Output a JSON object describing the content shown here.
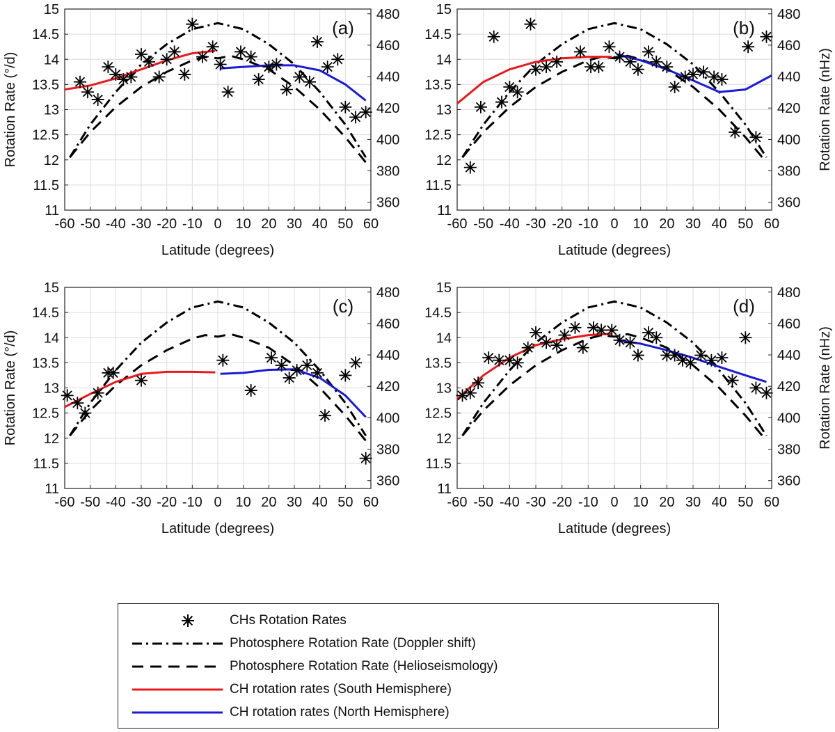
{
  "chart_data": {
    "type": "scatter",
    "figure_layout": "2x2",
    "shared": {
      "xlabel": "Latitude (degrees)",
      "ylabel_left": "Rotation Rate (°/d)",
      "ylabel_right": "Rotation Rate (nHz)",
      "xlim": [
        -60,
        60
      ],
      "ylim": [
        11,
        15
      ],
      "ylim_right": [
        355,
        483
      ],
      "xticks": [
        -60,
        -50,
        -40,
        -30,
        -20,
        -10,
        0,
        10,
        20,
        30,
        40,
        50,
        60
      ],
      "yticks": [
        11,
        11.5,
        12,
        12.5,
        13,
        13.5,
        14,
        14.5,
        15
      ],
      "yticks_right": [
        360,
        380,
        400,
        420,
        440,
        460,
        480
      ],
      "grid": true
    },
    "reference_series": {
      "doppler": {
        "name": "Photosphere Rotation Rate (Doppler shift)",
        "style": "dash-dot",
        "color": "#000000",
        "x": [
          -58,
          -50,
          -40,
          -30,
          -20,
          -10,
          0,
          10,
          20,
          30,
          40,
          50,
          58
        ],
        "y": [
          12.05,
          12.7,
          13.35,
          13.9,
          14.3,
          14.6,
          14.72,
          14.6,
          14.3,
          13.9,
          13.35,
          12.7,
          12.05
        ]
      },
      "helioseismology": {
        "name": "Photosphere Rotation Rate (Helioseismology)",
        "style": "dashed",
        "color": "#000000",
        "x": [
          -58,
          -50,
          -40,
          -30,
          -20,
          -10,
          -5,
          0,
          5,
          10,
          20,
          30,
          40,
          50,
          58
        ],
        "y": [
          12.05,
          12.55,
          13.05,
          13.45,
          13.75,
          13.98,
          14.05,
          14.02,
          14.07,
          14.0,
          13.8,
          13.45,
          13.0,
          12.45,
          11.95
        ]
      }
    },
    "panels": [
      {
        "label": "(a)",
        "scatter": {
          "x": [
            -54,
            -51,
            -47,
            -43,
            -40,
            -37,
            -34,
            -30,
            -27,
            -23,
            -20,
            -17,
            -13,
            -10,
            -6,
            -2,
            1,
            4,
            9,
            13,
            16,
            20,
            23,
            27,
            32,
            36,
            39,
            43,
            47,
            50,
            54,
            58
          ],
          "y": [
            13.55,
            13.35,
            13.2,
            13.85,
            13.7,
            13.6,
            13.65,
            14.1,
            13.95,
            13.65,
            14.0,
            14.15,
            13.7,
            14.7,
            14.05,
            14.25,
            13.9,
            13.35,
            14.15,
            14.05,
            13.6,
            13.85,
            13.9,
            13.4,
            13.65,
            13.55,
            14.35,
            13.85,
            14.0,
            13.05,
            12.85,
            12.95
          ]
        },
        "south_fit": {
          "x": [
            -60,
            -50,
            -40,
            -30,
            -20,
            -10,
            -1
          ],
          "y": [
            13.4,
            13.48,
            13.62,
            13.8,
            13.98,
            14.12,
            14.17
          ]
        },
        "north_fit": {
          "x": [
            1,
            10,
            20,
            30,
            40,
            50,
            58
          ],
          "y": [
            13.82,
            13.85,
            13.88,
            13.88,
            13.78,
            13.5,
            13.18
          ]
        }
      },
      {
        "label": "(b)",
        "scatter": {
          "x": [
            -55,
            -51,
            -46,
            -43,
            -40,
            -37,
            -32,
            -30,
            -26,
            -22,
            -13,
            -9,
            -6,
            -2,
            2,
            6,
            9,
            13,
            16,
            20,
            23,
            27,
            30,
            34,
            38,
            41,
            46,
            51,
            54,
            58
          ],
          "y": [
            11.85,
            13.05,
            14.45,
            13.15,
            13.45,
            13.35,
            14.7,
            13.8,
            13.85,
            13.95,
            14.15,
            13.85,
            13.85,
            14.25,
            14.05,
            13.95,
            13.8,
            14.15,
            13.95,
            13.85,
            13.45,
            13.65,
            13.7,
            13.75,
            13.65,
            13.6,
            12.55,
            14.25,
            12.45,
            14.45
          ]
        },
        "south_fit": {
          "x": [
            -60,
            -50,
            -40,
            -30,
            -20,
            -10,
            -1
          ],
          "y": [
            13.12,
            13.55,
            13.8,
            13.95,
            14.02,
            14.05,
            14.05
          ]
        },
        "north_fit": {
          "x": [
            1,
            10,
            20,
            30,
            40,
            50,
            60
          ],
          "y": [
            14.1,
            13.98,
            13.8,
            13.58,
            13.35,
            13.4,
            13.68
          ]
        }
      },
      {
        "label": "(c)",
        "scatter": {
          "x": [
            -59,
            -55,
            -52,
            -47,
            -43,
            -41,
            -30,
            2,
            13,
            21,
            25,
            28,
            31,
            35,
            39,
            42,
            50,
            54,
            58
          ],
          "y": [
            12.85,
            12.7,
            12.5,
            12.9,
            13.3,
            13.3,
            13.15,
            13.55,
            12.95,
            13.6,
            13.45,
            13.2,
            13.35,
            13.45,
            13.3,
            12.45,
            13.25,
            13.5,
            11.6
          ]
        },
        "south_fit": {
          "x": [
            -60,
            -50,
            -40,
            -30,
            -20,
            -10,
            -1
          ],
          "y": [
            12.62,
            12.88,
            13.12,
            13.28,
            13.32,
            13.32,
            13.31
          ]
        },
        "north_fit": {
          "x": [
            1,
            10,
            20,
            30,
            40,
            50,
            58
          ],
          "y": [
            13.28,
            13.3,
            13.36,
            13.37,
            13.2,
            12.85,
            12.42
          ]
        }
      },
      {
        "label": "(d)",
        "scatter": {
          "x": [
            -58,
            -55,
            -52,
            -48,
            -44,
            -40,
            -37,
            -33,
            -30,
            -26,
            -22,
            -19,
            -15,
            -12,
            -8,
            -5,
            -1,
            2,
            6,
            9,
            13,
            16,
            20,
            23,
            26,
            29,
            33,
            37,
            41,
            45,
            50,
            54,
            58
          ],
          "y": [
            12.85,
            12.9,
            13.1,
            13.6,
            13.55,
            13.55,
            13.5,
            13.8,
            14.1,
            13.9,
            13.85,
            14.05,
            14.2,
            13.8,
            14.2,
            14.15,
            14.15,
            13.95,
            13.9,
            13.65,
            14.1,
            14.0,
            13.65,
            13.65,
            13.55,
            13.5,
            13.65,
            13.55,
            13.6,
            13.15,
            14.0,
            13.0,
            12.9
          ]
        },
        "south_fit": {
          "x": [
            -60,
            -50,
            -40,
            -30,
            -20,
            -10,
            -1
          ],
          "y": [
            12.78,
            13.25,
            13.6,
            13.85,
            13.97,
            14.05,
            14.08
          ]
        },
        "north_fit": {
          "x": [
            1,
            10,
            20,
            30,
            40,
            50,
            58
          ],
          "y": [
            13.95,
            13.88,
            13.75,
            13.6,
            13.42,
            13.25,
            13.12
          ]
        }
      }
    ],
    "legend": [
      {
        "key": "scatter",
        "label": "CHs Rotation Rates"
      },
      {
        "key": "doppler",
        "label": "Photosphere Rotation Rate (Doppler shift)"
      },
      {
        "key": "helio",
        "label": "Photosphere Rotation Rate (Helioseismology)"
      },
      {
        "key": "south",
        "label": "CH rotation rates (South Hemisphere)"
      },
      {
        "key": "north",
        "label": "CH rotation rates (North Hemisphere)"
      }
    ],
    "colors": {
      "south": "#e8181b",
      "north": "#1a1ad8",
      "black": "#000000"
    }
  }
}
